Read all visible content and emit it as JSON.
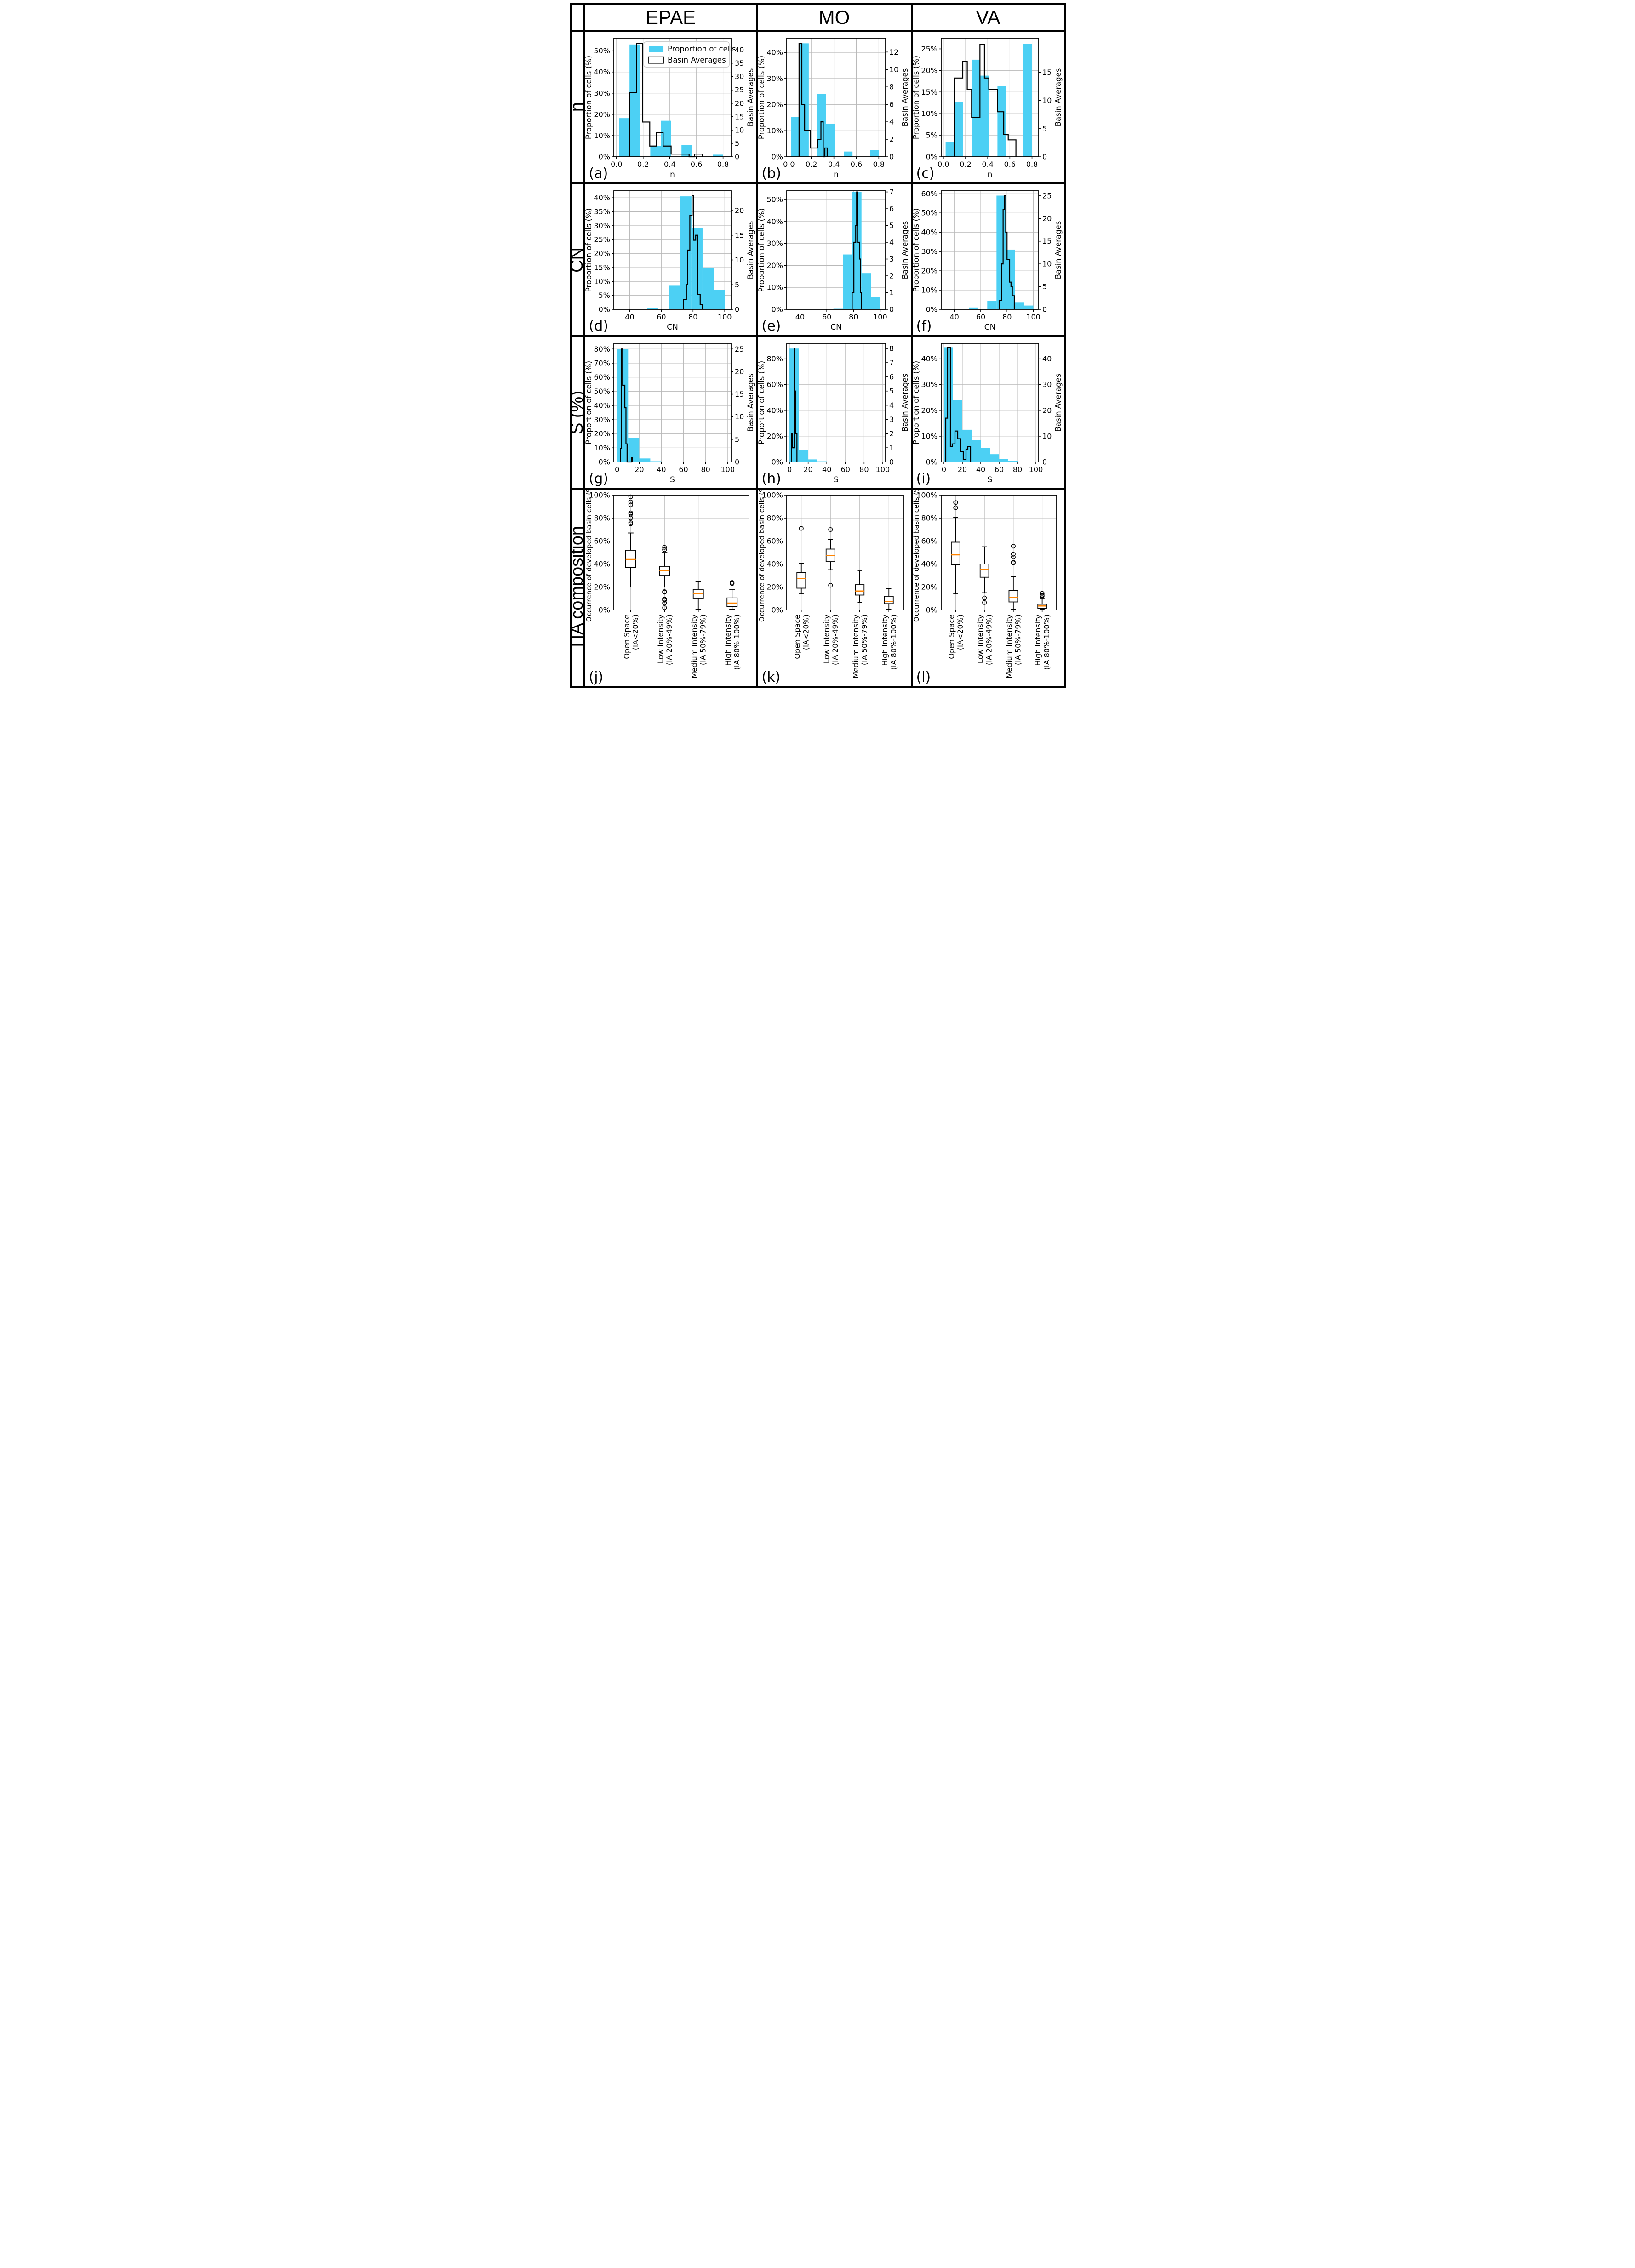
{
  "header": {
    "columns": [
      "EPAE",
      "MO",
      "VA"
    ]
  },
  "rows": [
    {
      "label": "n"
    },
    {
      "label": "CN"
    },
    {
      "label": "S (%)"
    },
    {
      "label": "TIA composition"
    }
  ],
  "colors": {
    "bar": "#4cd0f4",
    "step": "#000000",
    "median": "#ff8400",
    "grid": "#b9b9b9",
    "spine": "#000000",
    "legend_border": "#cccccc"
  },
  "legend": {
    "items": [
      {
        "label": "Proportion of cells",
        "type": "fill"
      },
      {
        "label": "Basin Averages",
        "type": "outline"
      }
    ]
  },
  "axis_labels": {
    "left": "Proportion of cells (%)",
    "right": "Basin Averages",
    "box_left": "Occurrence of developed basin cells (%)"
  },
  "box_categories": [
    [
      "Open Space",
      "(IA<20%)"
    ],
    [
      "Low Intensity",
      "(IA 20%-49%)"
    ],
    [
      "Medium Intensity",
      "(IA 50%-79%)"
    ],
    [
      "High Intensity",
      "(IA 80%-100%)"
    ]
  ],
  "box_yticks": [
    0,
    20,
    40,
    60,
    80,
    100
  ],
  "chart_data": [
    {
      "id": "(a)",
      "type": "hist",
      "column": "EPAE",
      "xlabel": "n",
      "xlim": [
        -0.02,
        0.86
      ],
      "xticks": [
        0,
        0.2,
        0.4,
        0.6,
        0.8
      ],
      "xtick_labels": [
        "0.0",
        "0.2",
        "0.4",
        "0.6",
        "0.8"
      ],
      "left": {
        "max": 56,
        "ticks": [
          0,
          10,
          20,
          30,
          40,
          50
        ]
      },
      "right": {
        "max": 44.4,
        "ticks": [
          0,
          5,
          10,
          15,
          20,
          25,
          30,
          35,
          40
        ]
      },
      "bars": [
        [
          0.02,
          0.098,
          18.2
        ],
        [
          0.098,
          0.176,
          53
        ],
        [
          0.254,
          0.332,
          5
        ],
        [
          0.332,
          0.41,
          17
        ],
        [
          0.488,
          0.566,
          5.5
        ],
        [
          0.722,
          0.8,
          1
        ]
      ],
      "steps": [
        [
          0.098,
          0.15,
          24
        ],
        [
          0.15,
          0.195,
          42.5
        ],
        [
          0.195,
          0.25,
          13
        ],
        [
          0.25,
          0.3,
          4
        ],
        [
          0.3,
          0.35,
          9
        ],
        [
          0.35,
          0.41,
          4
        ],
        [
          0.41,
          0.545,
          1
        ],
        [
          0.545,
          0.585,
          0
        ],
        [
          0.585,
          0.645,
          1
        ]
      ],
      "legend": true
    },
    {
      "id": "(b)",
      "type": "hist",
      "column": "MO",
      "xlabel": "n",
      "xlim": [
        -0.02,
        0.86
      ],
      "xticks": [
        0,
        0.2,
        0.4,
        0.6,
        0.8
      ],
      "xtick_labels": [
        "0.0",
        "0.2",
        "0.4",
        "0.6",
        "0.8"
      ],
      "left": {
        "max": 45.5,
        "ticks": [
          0,
          10,
          20,
          30,
          40
        ]
      },
      "right": {
        "max": 13.6,
        "ticks": [
          0,
          2,
          4,
          6,
          8,
          10,
          12
        ]
      },
      "bars": [
        [
          0.02,
          0.098,
          15.2
        ],
        [
          0.098,
          0.176,
          43.5
        ],
        [
          0.254,
          0.332,
          24
        ],
        [
          0.332,
          0.41,
          12.7
        ],
        [
          0.488,
          0.566,
          2
        ],
        [
          0.722,
          0.8,
          2.5
        ]
      ],
      "steps": [
        [
          0.09,
          0.115,
          13
        ],
        [
          0.115,
          0.14,
          6
        ],
        [
          0.14,
          0.19,
          3
        ],
        [
          0.19,
          0.255,
          1
        ],
        [
          0.255,
          0.285,
          2
        ],
        [
          0.285,
          0.305,
          4
        ],
        [
          0.305,
          0.32,
          0
        ],
        [
          0.32,
          0.34,
          1
        ]
      ],
      "legend": false
    },
    {
      "id": "(c)",
      "type": "hist",
      "column": "VA",
      "xlabel": "n",
      "xlim": [
        -0.02,
        0.86
      ],
      "xticks": [
        0,
        0.2,
        0.4,
        0.6,
        0.8
      ],
      "xtick_labels": [
        "0.0",
        "0.2",
        "0.4",
        "0.6",
        "0.8"
      ],
      "left": {
        "max": 27.5,
        "ticks": [
          0,
          5,
          10,
          15,
          20,
          25
        ]
      },
      "right": {
        "max": 21.1,
        "ticks": [
          0,
          5,
          10,
          15
        ]
      },
      "bars": [
        [
          0.02,
          0.098,
          3.5
        ],
        [
          0.098,
          0.176,
          12.7
        ],
        [
          0.254,
          0.332,
          22.5
        ],
        [
          0.332,
          0.41,
          18.8
        ],
        [
          0.488,
          0.566,
          16.4
        ],
        [
          0.722,
          0.8,
          26.2
        ]
      ],
      "steps": [
        [
          0.1,
          0.175,
          14
        ],
        [
          0.175,
          0.215,
          17
        ],
        [
          0.215,
          0.255,
          12
        ],
        [
          0.255,
          0.33,
          7
        ],
        [
          0.33,
          0.37,
          20
        ],
        [
          0.37,
          0.41,
          14
        ],
        [
          0.41,
          0.49,
          12
        ],
        [
          0.49,
          0.545,
          8
        ],
        [
          0.545,
          0.585,
          4
        ],
        [
          0.585,
          0.655,
          3
        ]
      ],
      "legend": false
    },
    {
      "id": "(d)",
      "type": "hist",
      "column": "EPAE",
      "xlabel": "CN",
      "xlim": [
        30,
        104
      ],
      "xticks": [
        40,
        60,
        80,
        100
      ],
      "xtick_labels": [
        "40",
        "60",
        "80",
        "100"
      ],
      "left": {
        "max": 42.5,
        "ticks": [
          0,
          5,
          10,
          15,
          20,
          25,
          30,
          35,
          40
        ]
      },
      "right": {
        "max": 24,
        "ticks": [
          0,
          5,
          10,
          15,
          20
        ]
      },
      "bars": [
        [
          51,
          58,
          0.5
        ],
        [
          65,
          72,
          8.5
        ],
        [
          72,
          79,
          40.5
        ],
        [
          79,
          86,
          29
        ],
        [
          86,
          93,
          15
        ],
        [
          93,
          100,
          7
        ]
      ],
      "steps": [
        [
          74,
          75.8,
          2
        ],
        [
          75.8,
          76.6,
          5
        ],
        [
          76.6,
          78,
          12
        ],
        [
          78,
          79.4,
          19
        ],
        [
          79.4,
          80.3,
          23
        ],
        [
          80.3,
          81.7,
          14
        ],
        [
          81.7,
          83,
          15
        ],
        [
          83,
          84.5,
          3
        ],
        [
          84.5,
          86,
          1
        ]
      ],
      "legend": false
    },
    {
      "id": "(e)",
      "type": "hist",
      "column": "MO",
      "xlabel": "CN",
      "xlim": [
        30,
        104
      ],
      "xticks": [
        40,
        60,
        80,
        100
      ],
      "xtick_labels": [
        "40",
        "60",
        "80",
        "100"
      ],
      "left": {
        "max": 54,
        "ticks": [
          0,
          10,
          20,
          30,
          40,
          50
        ]
      },
      "right": {
        "max": 7.07,
        "ticks": [
          0,
          1,
          2,
          3,
          4,
          5,
          6,
          7
        ]
      },
      "bars": [
        [
          65,
          72,
          0.3
        ],
        [
          72,
          79,
          25
        ],
        [
          79,
          86,
          53.5
        ],
        [
          86,
          93,
          16.5
        ],
        [
          93,
          100,
          5.5
        ]
      ],
      "steps": [
        [
          79,
          80.3,
          1
        ],
        [
          80.3,
          81.7,
          4
        ],
        [
          81.7,
          82.4,
          5
        ],
        [
          82.4,
          83.1,
          7
        ],
        [
          83.1,
          84.5,
          4
        ],
        [
          84.5,
          85.2,
          3
        ],
        [
          85.2,
          86,
          1
        ]
      ],
      "legend": false
    },
    {
      "id": "(f)",
      "type": "hist",
      "column": "VA",
      "xlabel": "CN",
      "xlim": [
        30,
        104
      ],
      "xticks": [
        40,
        60,
        80,
        100
      ],
      "xtick_labels": [
        "40",
        "60",
        "80",
        "100"
      ],
      "left": {
        "max": 61.5,
        "ticks": [
          0,
          10,
          20,
          30,
          40,
          50,
          60
        ]
      },
      "right": {
        "max": 26.1,
        "ticks": [
          0,
          5,
          10,
          15,
          20,
          25
        ]
      },
      "bars": [
        [
          51,
          58,
          1
        ],
        [
          65,
          72,
          4.5
        ],
        [
          72,
          79,
          59
        ],
        [
          79,
          86,
          31
        ],
        [
          86,
          93,
          3.5
        ],
        [
          93,
          100,
          2
        ]
      ],
      "steps": [
        [
          74,
          76,
          2
        ],
        [
          76,
          77,
          10
        ],
        [
          77,
          78,
          22
        ],
        [
          78,
          79,
          25
        ],
        [
          79,
          80,
          17
        ],
        [
          80,
          82,
          11
        ],
        [
          82,
          83,
          6
        ],
        [
          83,
          84,
          5
        ],
        [
          84,
          85.5,
          3
        ]
      ],
      "legend": false
    },
    {
      "id": "(g)",
      "type": "hist",
      "column": "EPAE",
      "xlabel": "S",
      "xlim": [
        -3,
        103
      ],
      "xticks": [
        0,
        20,
        40,
        60,
        80,
        100
      ],
      "xtick_labels": [
        "0",
        "20",
        "40",
        "60",
        "80",
        "100"
      ],
      "left": {
        "max": 84,
        "ticks": [
          0,
          10,
          20,
          30,
          40,
          50,
          60,
          70,
          80
        ]
      },
      "right": {
        "max": 26.25,
        "ticks": [
          0,
          5,
          10,
          15,
          20,
          25
        ]
      },
      "bars": [
        [
          0,
          10,
          80
        ],
        [
          10,
          20,
          17
        ],
        [
          20,
          30,
          2.5
        ],
        [
          30,
          40,
          0.5
        ]
      ],
      "steps": [
        [
          3,
          4,
          3
        ],
        [
          4,
          5,
          25
        ],
        [
          5,
          7,
          17
        ],
        [
          7,
          8,
          12
        ],
        [
          8,
          9,
          4
        ],
        [
          9,
          13,
          0
        ],
        [
          13,
          14,
          1
        ]
      ],
      "legend": false
    },
    {
      "id": "(h)",
      "type": "hist",
      "column": "MO",
      "xlabel": "S",
      "xlim": [
        -3,
        103
      ],
      "xticks": [
        0,
        20,
        40,
        60,
        80,
        100
      ],
      "xtick_labels": [
        "0",
        "20",
        "40",
        "60",
        "80",
        "100"
      ],
      "left": {
        "max": 92,
        "ticks": [
          0,
          20,
          40,
          60,
          80
        ]
      },
      "right": {
        "max": 8.36,
        "ticks": [
          0,
          1,
          2,
          3,
          4,
          5,
          6,
          7,
          8
        ]
      },
      "bars": [
        [
          0,
          10,
          88
        ],
        [
          10,
          20,
          9
        ],
        [
          20,
          30,
          2
        ],
        [
          30,
          40,
          0.5
        ]
      ],
      "steps": [
        [
          2,
          3,
          2
        ],
        [
          3,
          5,
          1
        ],
        [
          5,
          5.8,
          8
        ],
        [
          5.8,
          6.8,
          5
        ],
        [
          6.8,
          8,
          2
        ]
      ],
      "legend": false
    },
    {
      "id": "(i)",
      "type": "hist",
      "column": "VA",
      "xlabel": "S",
      "xlim": [
        -3,
        103
      ],
      "xticks": [
        0,
        20,
        40,
        60,
        80,
        100
      ],
      "xtick_labels": [
        "0",
        "20",
        "40",
        "60",
        "80",
        "100"
      ],
      "left": {
        "max": 46,
        "ticks": [
          0,
          10,
          20,
          30,
          40
        ]
      },
      "right": {
        "max": 46,
        "ticks": [
          0,
          10,
          20,
          30,
          40
        ]
      },
      "bars": [
        [
          0,
          10,
          44.5
        ],
        [
          10,
          20,
          24
        ],
        [
          20,
          30,
          12.5
        ],
        [
          30,
          40,
          8.5
        ],
        [
          40,
          50,
          5.5
        ],
        [
          50,
          60,
          3
        ],
        [
          60,
          70,
          1.2
        ],
        [
          70,
          80,
          0.4
        ],
        [
          80,
          90,
          0.15
        ]
      ],
      "steps": [
        [
          2,
          4,
          17
        ],
        [
          4,
          7,
          44.5
        ],
        [
          7,
          9,
          6
        ],
        [
          9,
          12,
          7
        ],
        [
          12,
          15,
          12
        ],
        [
          15,
          18,
          9
        ],
        [
          18,
          21,
          4
        ],
        [
          21,
          24,
          1
        ],
        [
          24,
          26,
          5
        ],
        [
          26,
          29,
          6
        ]
      ],
      "legend": false
    },
    {
      "id": "(j)",
      "type": "box",
      "column": "EPAE",
      "boxes": [
        {
          "lo": 20,
          "q1": 37,
          "med": 44,
          "q3": 52,
          "hi": 67,
          "out": [
            75,
            76,
            80,
            83.5,
            84.5,
            91.5,
            94,
            98.5
          ]
        },
        {
          "lo": 20,
          "q1": 30,
          "med": 34.5,
          "q3": 38,
          "hi": 50,
          "out": [
            54.5,
            52.5,
            16,
            15.5,
            9.5,
            9,
            8.5,
            6,
            2
          ]
        },
        {
          "lo": 0.5,
          "q1": 10,
          "med": 14.5,
          "q3": 18,
          "hi": 24.5,
          "out": []
        },
        {
          "lo": 0.5,
          "q1": 3,
          "med": 6,
          "q3": 10.5,
          "hi": 18,
          "out": [
            23,
            24
          ]
        }
      ]
    },
    {
      "id": "(k)",
      "type": "box",
      "column": "MO",
      "boxes": [
        {
          "lo": 14,
          "q1": 19,
          "med": 27.5,
          "q3": 32.5,
          "hi": 40.5,
          "out": [
            71
          ]
        },
        {
          "lo": 35,
          "q1": 42,
          "med": 47.5,
          "q3": 53,
          "hi": 61.5,
          "out": [
            70,
            21.5
          ]
        },
        {
          "lo": 6.5,
          "q1": 13,
          "med": 16.5,
          "q3": 22,
          "hi": 34,
          "out": []
        },
        {
          "lo": 0.5,
          "q1": 5.5,
          "med": 7.5,
          "q3": 12,
          "hi": 18.5,
          "out": []
        }
      ]
    },
    {
      "id": "(l)",
      "type": "box",
      "column": "VA",
      "boxes": [
        {
          "lo": 14,
          "q1": 39.5,
          "med": 48,
          "q3": 59,
          "hi": 80.5,
          "out": [
            89,
            93.5
          ]
        },
        {
          "lo": 15,
          "q1": 28.5,
          "med": 35.5,
          "q3": 40,
          "hi": 55,
          "out": [
            10.5,
            6.5
          ]
        },
        {
          "lo": 0.5,
          "q1": 7,
          "med": 11,
          "q3": 17,
          "hi": 29,
          "out": [
            41,
            41.5,
            46,
            48.5,
            55.5
          ]
        },
        {
          "lo": 0.5,
          "q1": 1.5,
          "med": 3.5,
          "q3": 5,
          "hi": 10,
          "out": [
            12,
            12.5,
            13,
            14.5
          ]
        }
      ]
    }
  ]
}
